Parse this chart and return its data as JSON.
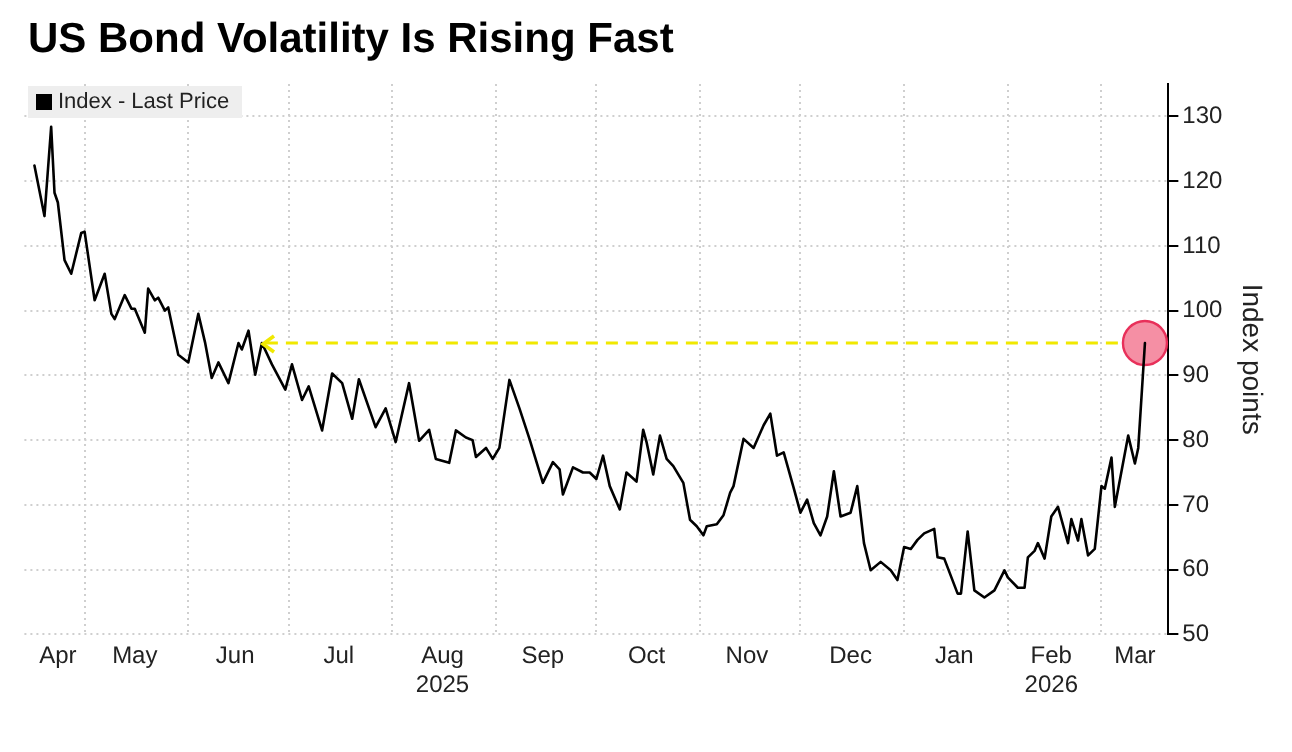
{
  "chart_data": {
    "type": "line",
    "title": "US Bond Volatility Is Rising Fast",
    "ylabel": "Index points",
    "xlim": [
      "2025-04-13",
      "2026-03-21"
    ],
    "xticks": [
      {
        "value": "2025-04-23",
        "label": "Apr"
      },
      {
        "value": "2025-05-01",
        "label": null
      },
      {
        "value": "2025-05-16",
        "label": "May"
      },
      {
        "value": "2025-06-01",
        "label": null
      },
      {
        "value": "2025-06-15",
        "label": "Jun"
      },
      {
        "value": "2025-07-01",
        "label": null
      },
      {
        "value": "2025-07-16",
        "label": "Jul"
      },
      {
        "value": "2025-08-01",
        "label": null
      },
      {
        "value": "2025-08-16",
        "label": "Aug\n2025"
      },
      {
        "value": "2025-09-01",
        "label": null
      },
      {
        "value": "2025-09-15",
        "label": "Sep"
      },
      {
        "value": "2025-10-01",
        "label": null
      },
      {
        "value": "2025-10-16",
        "label": "Oct"
      },
      {
        "value": "2025-11-01",
        "label": null
      },
      {
        "value": "2025-11-15",
        "label": "Nov"
      },
      {
        "value": "2025-12-01",
        "label": null
      },
      {
        "value": "2025-12-16",
        "label": "Dec"
      },
      {
        "value": "2026-01-01",
        "label": null
      },
      {
        "value": "2026-01-16",
        "label": "Jan"
      },
      {
        "value": "2026-02-01",
        "label": null
      },
      {
        "value": "2026-02-14",
        "label": "Feb\n2026"
      },
      {
        "value": "2026-03-01",
        "label": null
      },
      {
        "value": "2026-03-11",
        "label": "Mar"
      }
    ],
    "ylim": [
      50,
      135
    ],
    "yticks": [
      50,
      60,
      70,
      80,
      90,
      100,
      110,
      120,
      130
    ],
    "grid": true,
    "legend": "top left",
    "series": [
      {
        "name": "Index - Last Price",
        "color": "#000000",
        "x": [
          "2025-04-16",
          "2025-04-19",
          "2025-04-21",
          "2025-04-22",
          "2025-04-23",
          "2025-04-25",
          "2025-04-27",
          "2025-04-30",
          "2025-05-01",
          "2025-05-04",
          "2025-05-07",
          "2025-05-09",
          "2025-05-10",
          "2025-05-13",
          "2025-05-15",
          "2025-05-16",
          "2025-05-19",
          "2025-05-20",
          "2025-05-22",
          "2025-05-23",
          "2025-05-25",
          "2025-05-26",
          "2025-05-29",
          "2025-06-01",
          "2025-06-04",
          "2025-06-06",
          "2025-06-08",
          "2025-06-10",
          "2025-06-13",
          "2025-06-16",
          "2025-06-17",
          "2025-06-19",
          "2025-06-21",
          "2025-06-23",
          "2025-06-26",
          "2025-06-30",
          "2025-07-02",
          "2025-07-05",
          "2025-07-07",
          "2025-07-11",
          "2025-07-14",
          "2025-07-17",
          "2025-07-20",
          "2025-07-22",
          "2025-07-27",
          "2025-07-30",
          "2025-08-02",
          "2025-08-06",
          "2025-08-09",
          "2025-08-12",
          "2025-08-14",
          "2025-08-18",
          "2025-08-20",
          "2025-08-23",
          "2025-08-25",
          "2025-08-26",
          "2025-08-29",
          "2025-08-31",
          "2025-09-02",
          "2025-09-05",
          "2025-09-08",
          "2025-09-11",
          "2025-09-15",
          "2025-09-18",
          "2025-09-20",
          "2025-09-21",
          "2025-09-24",
          "2025-09-27",
          "2025-09-29",
          "2025-10-01",
          "2025-10-03",
          "2025-10-05",
          "2025-10-08",
          "2025-10-10",
          "2025-10-13",
          "2025-10-15",
          "2025-10-16",
          "2025-10-18",
          "2025-10-20",
          "2025-10-22",
          "2025-10-24",
          "2025-10-27",
          "2025-10-29",
          "2025-10-31",
          "2025-11-02",
          "2025-11-03",
          "2025-11-06",
          "2025-11-08",
          "2025-11-10",
          "2025-11-11",
          "2025-11-14",
          "2025-11-17",
          "2025-11-20",
          "2025-11-22",
          "2025-11-24",
          "2025-11-26",
          "2025-11-29",
          "2025-12-01",
          "2025-12-03",
          "2025-12-05",
          "2025-12-07",
          "2025-12-09",
          "2025-12-11",
          "2025-12-13",
          "2025-12-16",
          "2025-12-18",
          "2025-12-20",
          "2025-12-22",
          "2025-12-25",
          "2025-12-28",
          "2025-12-30",
          "2026-01-01",
          "2026-01-03",
          "2026-01-05",
          "2026-01-07",
          "2026-01-10",
          "2026-01-11",
          "2026-01-13",
          "2026-01-17",
          "2026-01-18",
          "2026-01-20",
          "2026-01-22",
          "2026-01-25",
          "2026-01-28",
          "2026-01-31",
          "2026-02-01",
          "2026-02-04",
          "2026-02-06",
          "2026-02-07",
          "2026-02-09",
          "2026-02-10",
          "2026-02-12",
          "2026-02-14",
          "2026-02-16",
          "2026-02-19",
          "2026-02-20",
          "2026-02-22",
          "2026-02-23",
          "2026-02-25",
          "2026-02-27",
          "2026-03-01",
          "2026-03-02",
          "2026-03-04",
          "2026-03-05",
          "2026-03-09",
          "2026-03-11",
          "2026-03-12",
          "2026-03-14"
        ],
        "values": [
          122.4,
          114.6,
          128.4,
          118.2,
          116.7,
          107.8,
          105.7,
          112,
          112.2,
          101.6,
          105.7,
          99.5,
          98.7,
          102.4,
          100.3,
          100.3,
          96.6,
          103.4,
          101.6,
          102,
          100,
          100.5,
          93.2,
          92,
          99.5,
          95.1,
          89.6,
          92,
          88.8,
          95,
          94,
          96.9,
          90.1,
          95,
          91.7,
          87.8,
          91.7,
          86.2,
          88.3,
          81.5,
          90.3,
          88.8,
          83.3,
          89.4,
          82,
          84.9,
          79.7,
          88.8,
          79.9,
          81.6,
          77.1,
          76.5,
          81.5,
          80.4,
          80,
          77.4,
          78.8,
          77.1,
          78.8,
          89.3,
          84.9,
          80.2,
          73.4,
          76.6,
          75.5,
          71.6,
          75.8,
          75,
          75,
          74,
          77.6,
          72.9,
          69.3,
          75,
          73.6,
          81.6,
          79.7,
          74.7,
          80.7,
          77.1,
          76,
          73.4,
          67.7,
          66.7,
          65.3,
          66.7,
          67,
          68.4,
          71.9,
          72.9,
          80.2,
          78.8,
          82.3,
          84.1,
          77.6,
          78.1,
          72.6,
          68.8,
          70.8,
          67.2,
          65.3,
          68.2,
          75.2,
          68.2,
          68.8,
          72.9,
          64.1,
          59.9,
          61.2,
          59.9,
          58.4,
          63.5,
          63.2,
          64.6,
          65.6,
          66.3,
          61.9,
          61.7,
          56.3,
          56.3,
          65.9,
          56.8,
          55.7,
          56.8,
          59.9,
          58.8,
          57.2,
          57.2,
          61.9,
          62.9,
          64.1,
          61.7,
          68.2,
          69.7,
          64.1,
          67.8,
          64.5,
          67.8,
          62.2,
          63.2,
          72.9,
          72.5,
          77.3,
          69.7,
          80.7,
          76.4,
          78.8,
          95
        ]
      },
      {
        "type": "scatter",
        "color": "#f58fa4",
        "marker": "circle",
        "x": [
          "2026-03-14"
        ],
        "values": [
          95
        ]
      }
    ],
    "ref_lines": [
      {
        "axis": "y",
        "value": 95,
        "color": "#f0e800",
        "line_style": "dashed"
      }
    ]
  }
}
